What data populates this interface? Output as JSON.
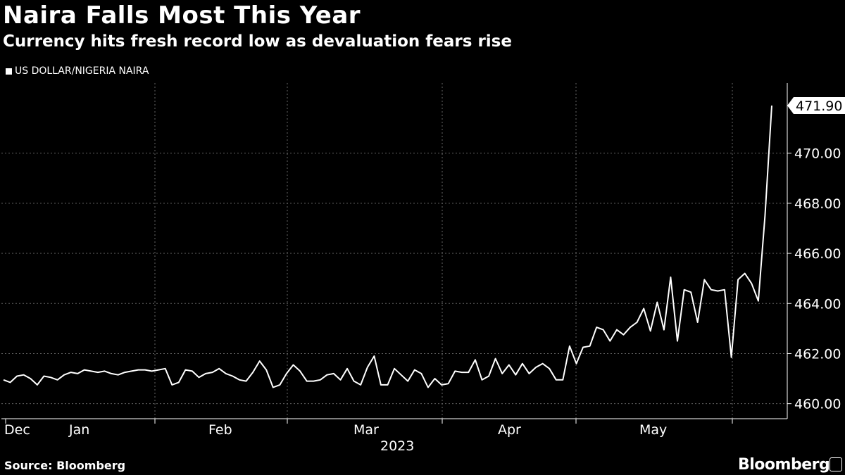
{
  "title": "Naira Falls Most This Year",
  "subtitle": "Currency hits fresh record low as devaluation fears rise",
  "source": "Source: Bloomberg",
  "brand": "Bloomberg",
  "colors": {
    "background": "#000000",
    "line": "#ffffff",
    "grid": "#666666"
  },
  "chart_data": {
    "type": "line",
    "title": "Naira Falls Most This Year",
    "legend": [
      "US DOLLAR/NIGERIA NAIRA"
    ],
    "xlabel": "2023",
    "ylabel": "",
    "ylim": [
      459.4,
      472.8
    ],
    "yticks": [
      460,
      462,
      464,
      466,
      468,
      470
    ],
    "ytick_labels": [
      "460.00",
      "462.00",
      "464.00",
      "466.00",
      "468.00",
      "470.00"
    ],
    "month_labels": [
      "Dec",
      "Jan",
      "Feb",
      "Mar",
      "Apr",
      "May"
    ],
    "year_label": "2023",
    "last_value_label": "471.90",
    "series": [
      {
        "name": "US DOLLAR/NIGERIA NAIRA",
        "values": [
          460.95,
          460.85,
          461.1,
          461.15,
          461.0,
          460.75,
          461.1,
          461.05,
          460.95,
          461.15,
          461.25,
          461.2,
          461.35,
          461.3,
          461.25,
          461.3,
          461.2,
          461.15,
          461.25,
          461.3,
          461.35,
          461.35,
          461.3,
          461.35,
          461.4,
          460.75,
          460.85,
          461.35,
          461.3,
          461.05,
          461.2,
          461.25,
          461.4,
          461.2,
          461.1,
          460.95,
          460.9,
          461.25,
          461.7,
          461.35,
          460.65,
          460.75,
          461.2,
          461.55,
          461.3,
          460.9,
          460.9,
          460.95,
          461.15,
          461.2,
          460.95,
          461.4,
          460.9,
          460.75,
          461.45,
          461.9,
          460.75,
          460.75,
          461.4,
          461.15,
          460.9,
          461.35,
          461.2,
          460.65,
          461.0,
          460.75,
          460.8,
          461.3,
          461.25,
          461.25,
          461.75,
          460.95,
          461.1,
          461.8,
          461.2,
          461.55,
          461.15,
          461.6,
          461.2,
          461.45,
          461.6,
          461.4,
          460.95,
          460.95,
          462.3,
          461.6,
          462.25,
          462.3,
          463.05,
          462.95,
          462.5,
          462.95,
          462.75,
          463.05,
          463.25,
          463.8,
          462.9,
          464.05,
          462.95,
          465.05,
          462.5,
          464.55,
          464.45,
          463.25,
          464.95,
          464.55,
          464.5,
          464.55,
          461.85,
          464.95,
          465.2,
          464.8,
          464.1,
          467.5,
          471.9
        ]
      }
    ]
  }
}
